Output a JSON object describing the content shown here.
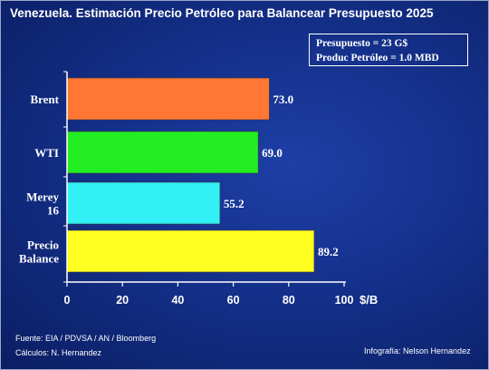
{
  "chart_data": {
    "type": "bar",
    "orientation": "horizontal",
    "title": "Venezuela.  Estimación Precio Petróleo  para Balancear  Presupuesto 2025",
    "categories": [
      "Brent",
      "WTI",
      "Merey 16",
      "Precio Balance"
    ],
    "category_lines": [
      [
        "Brent"
      ],
      [
        "WTI"
      ],
      [
        "Merey",
        "16"
      ],
      [
        "Precio",
        "Balance"
      ]
    ],
    "values": [
      73.0,
      69.0,
      55.2,
      89.2
    ],
    "value_labels": [
      "73.0",
      "69.0",
      "55.2",
      "89.2"
    ],
    "colors": [
      "#ff7733",
      "#22ee22",
      "#33f0f5",
      "#ffff22"
    ],
    "xlim": [
      0,
      100
    ],
    "xticks": [
      0,
      20,
      40,
      60,
      80,
      100
    ],
    "xlabel": "$/B",
    "grid": false
  },
  "info_box": {
    "line1": "Presupuesto = 23 G$",
    "line2": "Produc Petróleo = 1.0 MBD"
  },
  "footer": {
    "source": "Fuente: EIA / PDVSA / AN  / Bloomberg",
    "calc": "Cálculos: N. Hernandez",
    "credit": "Infografía: Nelson Hernandez"
  },
  "colors": {
    "background": "#14308a",
    "text": "#ffffff"
  }
}
